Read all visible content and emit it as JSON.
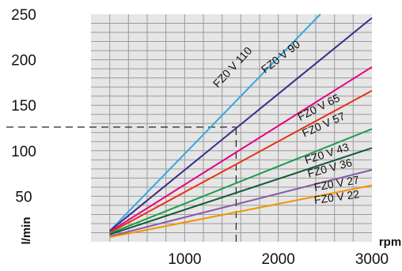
{
  "chart_data": {
    "type": "line",
    "xlabel": "rpm",
    "ylabel": "l/min",
    "xlim": [
      0,
      3000
    ],
    "ylim": [
      0,
      250
    ],
    "x_ticks": [
      1000,
      2000,
      3000
    ],
    "y_ticks": [
      50,
      100,
      150,
      200,
      250
    ],
    "x_tick_labels": [
      "1000",
      "2000",
      "3000"
    ],
    "y_tick_labels": [
      "50",
      "100",
      "150",
      "200",
      "250"
    ],
    "grid": true,
    "plot_background": "#e6e6e6",
    "grid_color": "#9a9a9a",
    "series": [
      {
        "name": "FZ0 V 110",
        "color": "#35a8e0",
        "x": [
          200,
          2450
        ],
        "y": [
          12,
          250
        ]
      },
      {
        "name": "FZ0 V 90",
        "color": "#3b2a8a",
        "x": [
          200,
          3000
        ],
        "y": [
          12,
          246
        ]
      },
      {
        "name": "FZ0 V 65",
        "color": "#e6007e",
        "x": [
          200,
          3000
        ],
        "y": [
          11,
          192
        ]
      },
      {
        "name": "FZ0 V 57",
        "color": "#e63312",
        "x": [
          200,
          3000
        ],
        "y": [
          10,
          166
        ]
      },
      {
        "name": "FZ0 V 43",
        "color": "#1f9b4e",
        "x": [
          200,
          3000
        ],
        "y": [
          9,
          124
        ]
      },
      {
        "name": "FZ0 V 36",
        "color": "#0f5a32",
        "x": [
          200,
          3000
        ],
        "y": [
          8,
          103
        ]
      },
      {
        "name": "FZ0 V 27",
        "color": "#8a5aa8",
        "x": [
          200,
          3000
        ],
        "y": [
          6,
          79
        ]
      },
      {
        "name": "FZ0 V 22",
        "color": "#f39200",
        "x": [
          200,
          3000
        ],
        "y": [
          5,
          62
        ]
      }
    ],
    "reference_lines": [
      {
        "orientation": "horizontal",
        "value": 126,
        "from_x": -1000,
        "to_x": 1550,
        "color": "#222222",
        "style": "dashed"
      },
      {
        "orientation": "vertical",
        "value": 1550,
        "from_y": 0,
        "to_y": 126,
        "color": "#222222",
        "style": "dashed"
      }
    ]
  }
}
